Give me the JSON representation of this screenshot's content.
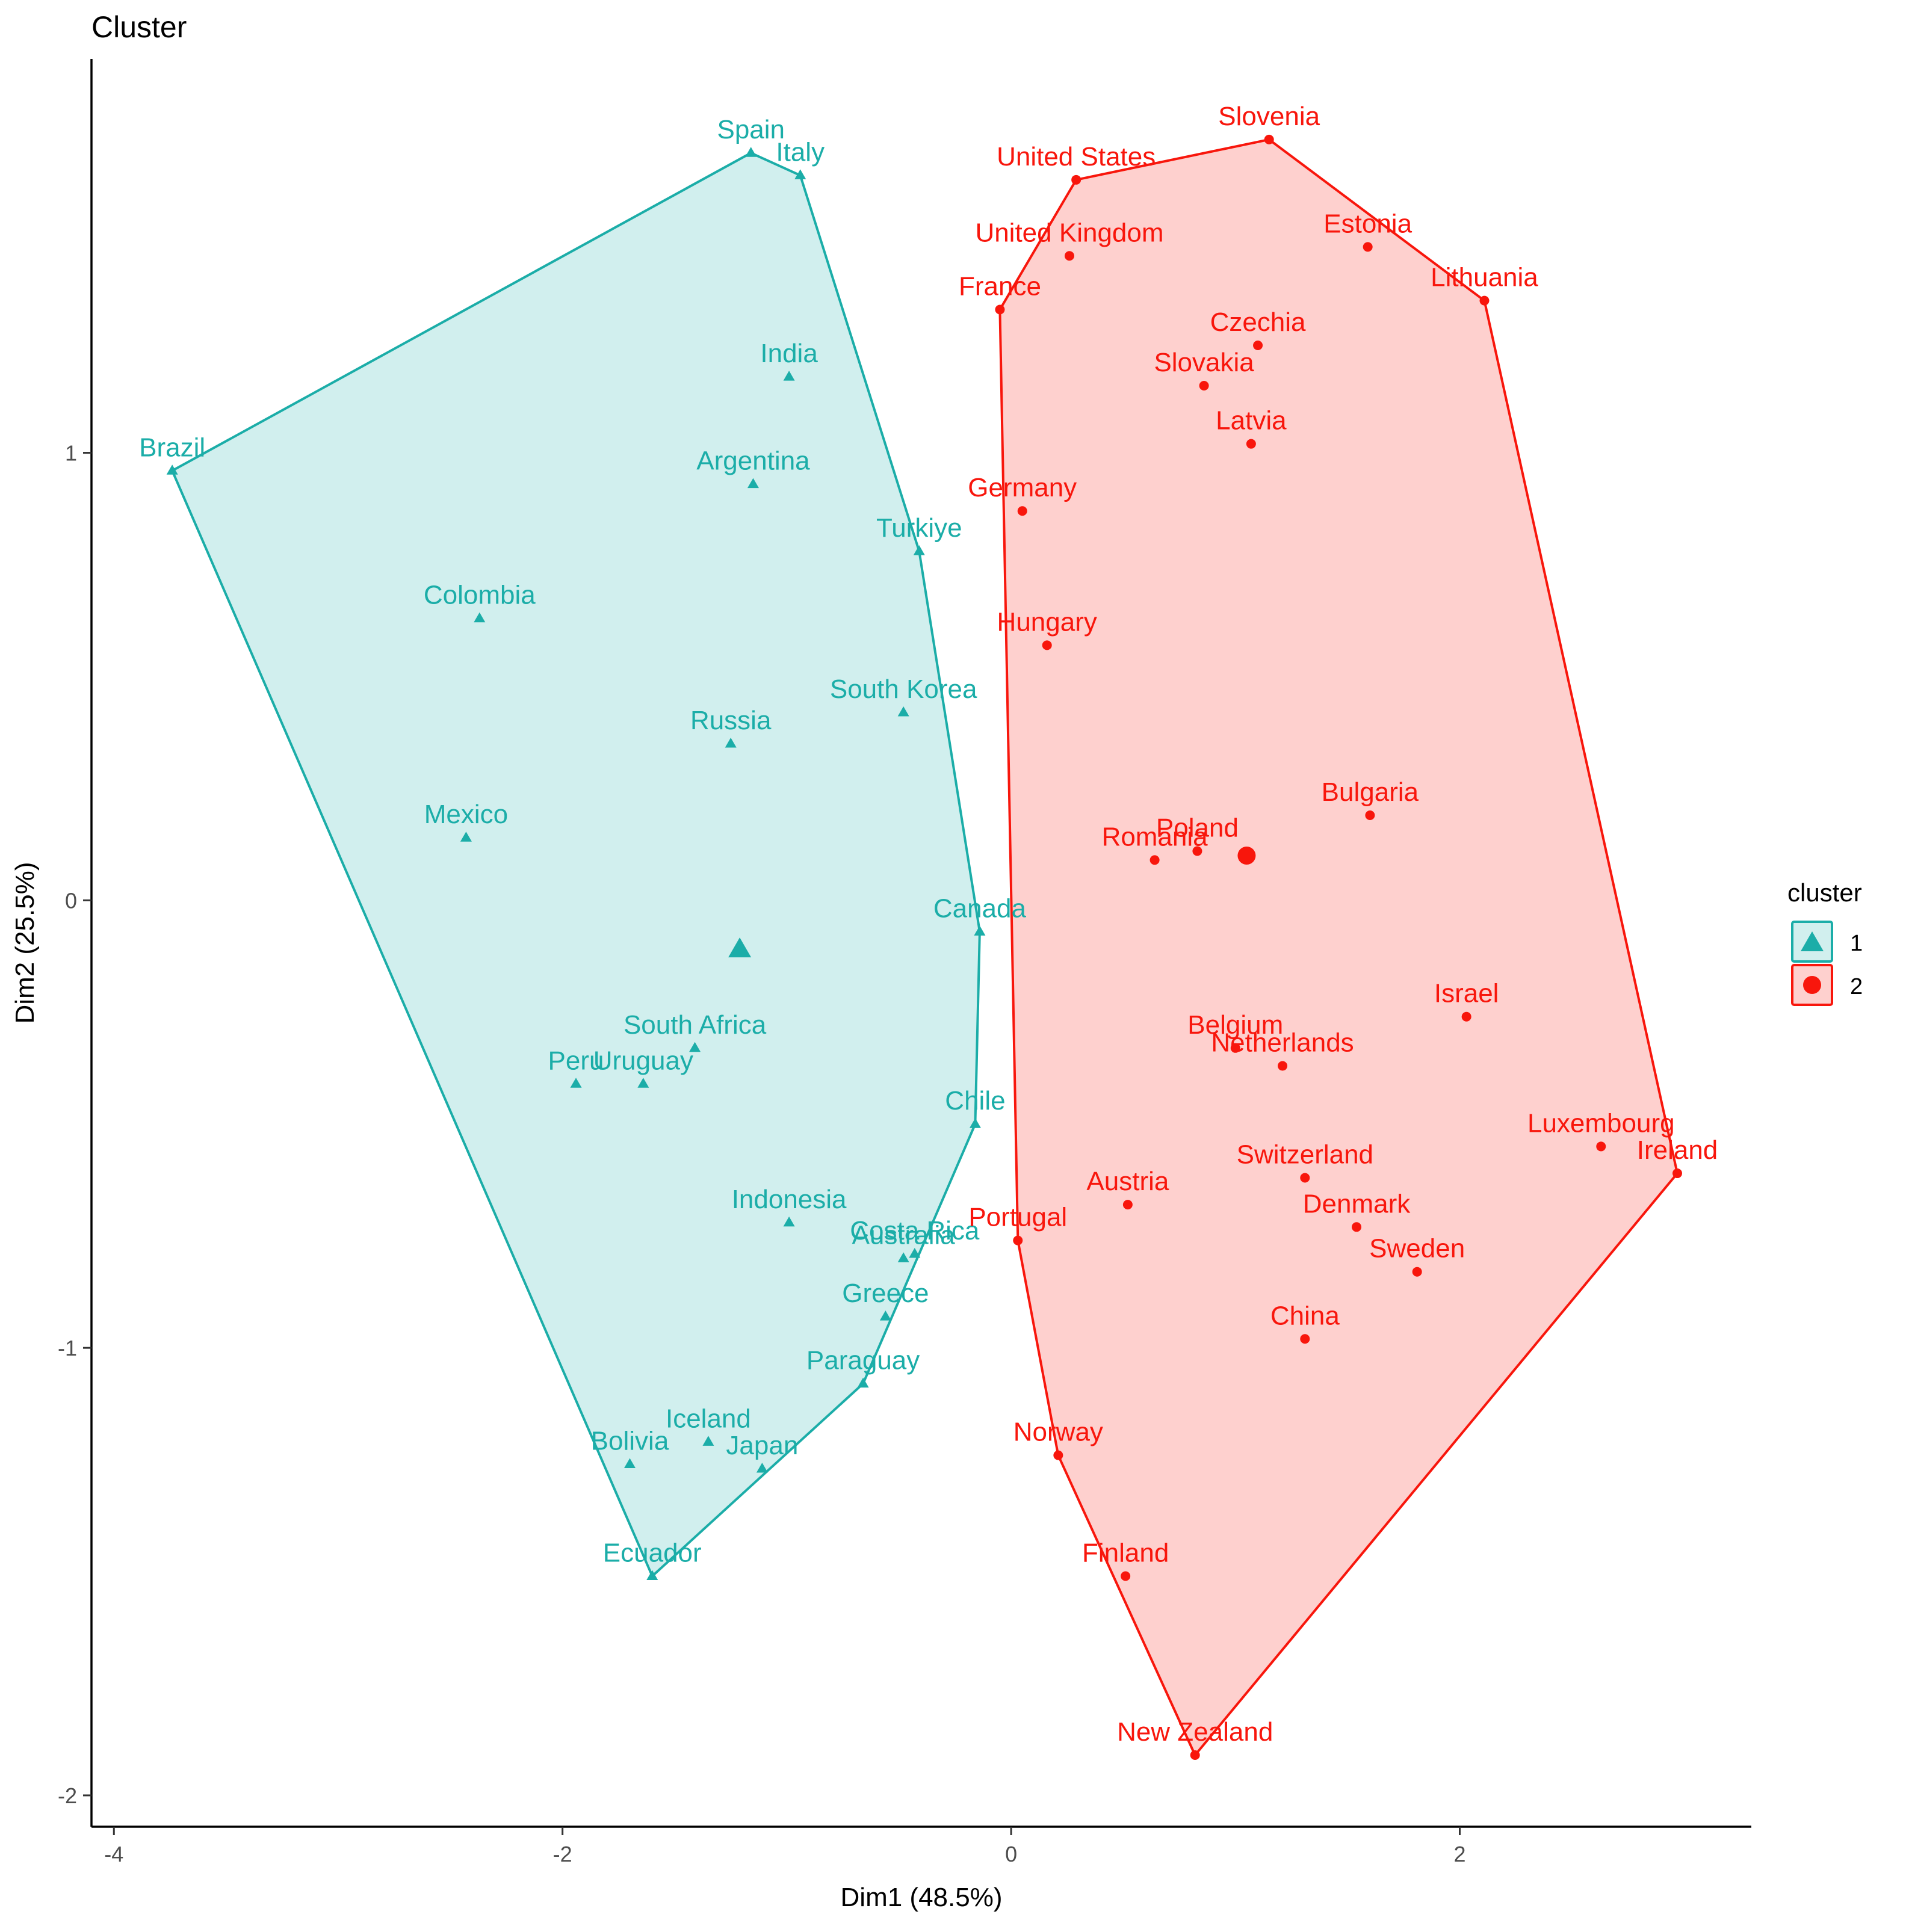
{
  "chart_data": {
    "type": "scatter",
    "title": "Cluster",
    "xlabel": "Dim1 (48.5%)",
    "ylabel": "Dim2 (25.5%)",
    "xlim": [
      -4.1,
      3.3
    ],
    "ylim": [
      -2.07,
      1.88
    ],
    "xticks": [
      -4,
      -2,
      0,
      2
    ],
    "yticks": [
      -2,
      -1,
      0,
      1
    ],
    "grid": false,
    "legend": {
      "title": "cluster",
      "position": "right",
      "entries": [
        "1",
        "2"
      ]
    },
    "series": [
      {
        "name": "1",
        "color": "#1BADA8",
        "marker": "triangle",
        "centroid": {
          "x": -1.21,
          "y": -0.11
        },
        "hull": [
          "Brazil",
          "Spain",
          "Italy",
          "Turkiye",
          "Canada",
          "Chile",
          "Paraguay",
          "Ecuador"
        ],
        "points": [
          {
            "label": "Spain",
            "x": -1.16,
            "y": 1.67
          },
          {
            "label": "Italy",
            "x": -0.94,
            "y": 1.62
          },
          {
            "label": "India",
            "x": -0.99,
            "y": 1.17
          },
          {
            "label": "Brazil",
            "x": -3.74,
            "y": 0.96
          },
          {
            "label": "Argentina",
            "x": -1.15,
            "y": 0.93
          },
          {
            "label": "Turkiye",
            "x": -0.41,
            "y": 0.78
          },
          {
            "label": "Colombia",
            "x": -2.37,
            "y": 0.63
          },
          {
            "label": "South Korea",
            "x": -0.48,
            "y": 0.42
          },
          {
            "label": "Russia",
            "x": -1.25,
            "y": 0.35
          },
          {
            "label": "Mexico",
            "x": -2.43,
            "y": 0.14
          },
          {
            "label": "Canada",
            "x": -0.14,
            "y": -0.07
          },
          {
            "label": "South Africa",
            "x": -1.41,
            "y": -0.33
          },
          {
            "label": "Uruguay",
            "x": -1.64,
            "y": -0.41
          },
          {
            "label": "Peru",
            "x": -1.94,
            "y": -0.41
          },
          {
            "label": "Chile",
            "x": -0.16,
            "y": -0.5
          },
          {
            "label": "Indonesia",
            "x": -0.99,
            "y": -0.72
          },
          {
            "label": "Costa Rica",
            "x": -0.43,
            "y": -0.79
          },
          {
            "label": "Australia",
            "x": -0.48,
            "y": -0.8
          },
          {
            "label": "Greece",
            "x": -0.56,
            "y": -0.93
          },
          {
            "label": "Paraguay",
            "x": -0.66,
            "y": -1.08
          },
          {
            "label": "Iceland",
            "x": -1.35,
            "y": -1.21
          },
          {
            "label": "Bolivia",
            "x": -1.7,
            "y": -1.26
          },
          {
            "label": "Japan",
            "x": -1.11,
            "y": -1.27
          },
          {
            "label": "Ecuador",
            "x": -1.6,
            "y": -1.51
          }
        ]
      },
      {
        "name": "2",
        "color": "#F8160C",
        "marker": "circle",
        "centroid": {
          "x": 1.05,
          "y": 0.1
        },
        "hull": [
          "France",
          "United States",
          "Slovenia",
          "Lithuania",
          "Ireland",
          "New Zealand",
          "Norway",
          "Portugal"
        ],
        "points": [
          {
            "label": "Slovenia",
            "x": 1.15,
            "y": 1.7
          },
          {
            "label": "United States",
            "x": 0.29,
            "y": 1.61
          },
          {
            "label": "United Kingdom",
            "x": 0.26,
            "y": 1.44
          },
          {
            "label": "Estonia",
            "x": 1.59,
            "y": 1.46
          },
          {
            "label": "France",
            "x": -0.05,
            "y": 1.32
          },
          {
            "label": "Lithuania",
            "x": 2.11,
            "y": 1.34
          },
          {
            "label": "Czechia",
            "x": 1.1,
            "y": 1.24
          },
          {
            "label": "Slovakia",
            "x": 0.86,
            "y": 1.15
          },
          {
            "label": "Latvia",
            "x": 1.07,
            "y": 1.02
          },
          {
            "label": "Germany",
            "x": 0.05,
            "y": 0.87
          },
          {
            "label": "Hungary",
            "x": 0.16,
            "y": 0.57
          },
          {
            "label": "Bulgaria",
            "x": 1.6,
            "y": 0.19
          },
          {
            "label": "Poland",
            "x": 0.83,
            "y": 0.11
          },
          {
            "label": "Romania",
            "x": 0.64,
            "y": 0.09
          },
          {
            "label": "Israel",
            "x": 2.03,
            "y": -0.26
          },
          {
            "label": "Belgium",
            "x": 1.0,
            "y": -0.33
          },
          {
            "label": "Netherlands",
            "x": 1.21,
            "y": -0.37
          },
          {
            "label": "Luxembourg",
            "x": 2.63,
            "y": -0.55
          },
          {
            "label": "Ireland",
            "x": 2.97,
            "y": -0.61
          },
          {
            "label": "Switzerland",
            "x": 1.31,
            "y": -0.62
          },
          {
            "label": "Austria",
            "x": 0.52,
            "y": -0.68
          },
          {
            "label": "Denmark",
            "x": 1.54,
            "y": -0.73
          },
          {
            "label": "Portugal",
            "x": 0.03,
            "y": -0.76
          },
          {
            "label": "Sweden",
            "x": 1.81,
            "y": -0.83
          },
          {
            "label": "China",
            "x": 1.31,
            "y": -0.98
          },
          {
            "label": "Norway",
            "x": 0.21,
            "y": -1.24
          },
          {
            "label": "Finland",
            "x": 0.51,
            "y": -1.51
          },
          {
            "label": "New Zealand",
            "x": 0.82,
            "y": -1.91
          }
        ]
      }
    ]
  }
}
